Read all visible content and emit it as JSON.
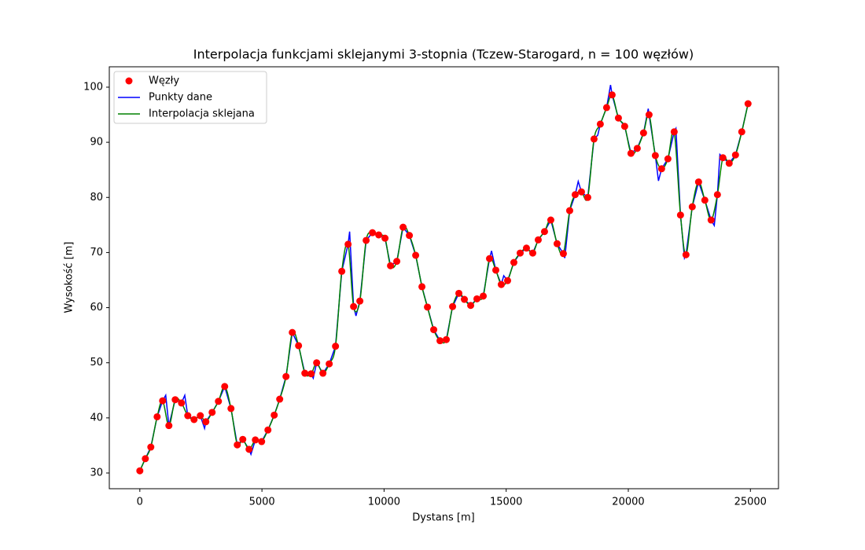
{
  "chart_data": {
    "type": "line",
    "title": "Interpolacja funkcjami sklejanymi 3-stopnia (Tczew-Starogard, n = 100 węzłów)",
    "xlabel": "Dystans [m]",
    "ylabel": "Wysokość [m]",
    "xlim": [
      -1250,
      26150
    ],
    "ylim": [
      27.15,
      103.7
    ],
    "xticks": [
      0,
      5000,
      10000,
      15000,
      20000,
      25000
    ],
    "yticks": [
      30,
      40,
      50,
      60,
      70,
      80,
      90,
      100
    ],
    "legend": "upper left",
    "series": [
      {
        "name": "Węzły",
        "type": "scatter",
        "color": "#ff0000",
        "x": [
          0,
          225,
          450,
          708,
          933,
          1190,
          1448,
          1705,
          1963,
          2220,
          2477,
          2703,
          2960,
          3218,
          3475,
          3732,
          3990,
          4215,
          4472,
          4730,
          4987,
          5245,
          5502,
          5727,
          5985,
          6242,
          6499,
          6757,
          7014,
          7240,
          7497,
          7754,
          8012,
          8269,
          8527,
          8752,
          9009,
          9266,
          9524,
          9781,
          10039,
          10264,
          10521,
          10779,
          11036,
          11294,
          11551,
          11776,
          12033,
          12291,
          12548,
          12806,
          13063,
          13288,
          13546,
          13803,
          14061,
          14318,
          14575,
          14800,
          15058,
          15315,
          15573,
          15830,
          16087,
          16313,
          16570,
          16827,
          17085,
          17342,
          17600,
          17825,
          18082,
          18340,
          18597,
          18854,
          19112,
          19337,
          19595,
          19852,
          20109,
          20367,
          20624,
          20850,
          21107,
          21364,
          21622,
          21879,
          22137,
          22362,
          22619,
          22877,
          23134,
          23391,
          23649,
          23874,
          24131,
          24389,
          24646,
          24903
        ],
        "values": [
          30.4,
          32.6,
          34.7,
          40.2,
          43.1,
          38.6,
          43.3,
          42.7,
          40.4,
          39.7,
          40.4,
          39.3,
          41.0,
          43.0,
          45.7,
          41.7,
          35.1,
          36.1,
          34.3,
          36.0,
          35.7,
          37.8,
          40.5,
          43.4,
          47.5,
          55.5,
          53.1,
          48.1,
          48.0,
          50.0,
          48.1,
          49.8,
          53.0,
          66.6,
          71.5,
          60.2,
          61.2,
          72.2,
          73.6,
          73.2,
          72.6,
          67.6,
          68.4,
          74.6,
          73.1,
          69.5,
          63.8,
          60.1,
          56.0,
          54.0,
          54.2,
          60.2,
          62.6,
          61.5,
          60.4,
          61.6,
          62.1,
          68.9,
          66.8,
          64.2,
          64.9,
          68.2,
          69.9,
          70.8,
          69.9,
          72.3,
          73.8,
          75.9,
          71.6,
          69.8,
          77.6,
          80.5,
          81.0,
          80.0,
          90.6,
          93.3,
          96.3,
          98.6,
          94.4,
          92.9,
          88.0,
          88.9,
          91.7,
          95.0,
          87.6,
          85.2,
          87.0,
          91.9,
          76.8,
          69.6,
          78.3,
          82.8,
          79.5,
          75.9,
          80.5,
          87.2,
          86.2,
          87.7,
          91.9,
          97.0
        ]
      },
      {
        "name": "Punkty dane",
        "type": "line",
        "color": "#0000ff",
        "x": [
          0,
          225,
          450,
          708,
          933,
          1060,
          1190,
          1448,
          1705,
          1840,
          1963,
          2220,
          2477,
          2650,
          2703,
          2960,
          3218,
          3475,
          3732,
          3990,
          4215,
          4472,
          4550,
          4730,
          4987,
          5245,
          5502,
          5727,
          5985,
          6242,
          6499,
          6757,
          7014,
          7100,
          7240,
          7497,
          7754,
          8012,
          8269,
          8527,
          8590,
          8752,
          8850,
          9009,
          9266,
          9524,
          9781,
          10039,
          10264,
          10521,
          10779,
          11036,
          11294,
          11551,
          11776,
          12033,
          12291,
          12548,
          12806,
          13063,
          13288,
          13546,
          13803,
          14061,
          14318,
          14400,
          14575,
          14800,
          14900,
          15058,
          15315,
          15573,
          15830,
          16087,
          16313,
          16570,
          16827,
          17085,
          17342,
          17400,
          17600,
          17825,
          17950,
          18082,
          18340,
          18597,
          18750,
          18854,
          19112,
          19273,
          19337,
          19595,
          19852,
          20109,
          20367,
          20624,
          20817,
          20850,
          21107,
          21235,
          21364,
          21622,
          21879,
          21950,
          22137,
          22300,
          22362,
          22619,
          22877,
          23134,
          23391,
          23520,
          23649,
          23750,
          23874,
          24131,
          24389,
          24646,
          24903
        ],
        "values": [
          30.4,
          32.6,
          34.7,
          40.2,
          43.1,
          44.1,
          38.6,
          43.3,
          42.7,
          44.1,
          40.4,
          39.7,
          40.4,
          38.1,
          39.3,
          41.0,
          43.0,
          45.7,
          41.7,
          35.1,
          36.1,
          34.3,
          33.4,
          36.0,
          35.7,
          37.8,
          40.5,
          43.4,
          47.5,
          55.5,
          53.1,
          48.1,
          48.0,
          47.2,
          50.0,
          48.1,
          49.8,
          53.0,
          66.6,
          71.5,
          73.8,
          60.2,
          58.5,
          61.2,
          72.2,
          73.6,
          73.2,
          72.6,
          67.6,
          68.4,
          74.6,
          73.1,
          69.5,
          63.8,
          60.1,
          56.0,
          54.0,
          54.2,
          60.2,
          62.6,
          61.5,
          60.4,
          61.6,
          62.1,
          68.9,
          70.3,
          66.8,
          64.2,
          65.8,
          64.9,
          68.2,
          69.9,
          70.8,
          69.9,
          72.3,
          73.8,
          75.9,
          71.6,
          69.8,
          69.0,
          77.6,
          80.5,
          82.9,
          81.0,
          80.0,
          90.6,
          91.3,
          93.3,
          96.3,
          100.4,
          98.6,
          94.4,
          92.9,
          88.0,
          88.9,
          91.7,
          96.1,
          95.0,
          87.6,
          83.0,
          85.2,
          87.0,
          91.9,
          92.5,
          76.8,
          69.0,
          69.6,
          78.3,
          82.8,
          79.5,
          75.9,
          74.9,
          80.5,
          87.8,
          87.2,
          86.2,
          87.7,
          91.9,
          97.0
        ]
      },
      {
        "name": "Interpolacja sklejana",
        "type": "spline",
        "color": "#008000",
        "x": [
          0,
          225,
          450,
          708,
          933,
          1190,
          1448,
          1705,
          1963,
          2220,
          2477,
          2703,
          2960,
          3218,
          3475,
          3732,
          3990,
          4215,
          4472,
          4730,
          4987,
          5245,
          5502,
          5727,
          5985,
          6242,
          6499,
          6757,
          7014,
          7240,
          7497,
          7754,
          8012,
          8269,
          8527,
          8752,
          9009,
          9266,
          9524,
          9781,
          10039,
          10264,
          10521,
          10779,
          11036,
          11294,
          11551,
          11776,
          12033,
          12291,
          12548,
          12806,
          13063,
          13288,
          13546,
          13803,
          14061,
          14318,
          14575,
          14800,
          15058,
          15315,
          15573,
          15830,
          16087,
          16313,
          16570,
          16827,
          17085,
          17342,
          17600,
          17825,
          18082,
          18340,
          18597,
          18854,
          19112,
          19337,
          19595,
          19852,
          20109,
          20367,
          20624,
          20850,
          21107,
          21364,
          21622,
          21879,
          22137,
          22362,
          22619,
          22877,
          23134,
          23391,
          23649,
          23874,
          24131,
          24389,
          24646,
          24903
        ],
        "values": [
          30.4,
          32.6,
          34.7,
          40.2,
          43.1,
          38.6,
          43.3,
          42.7,
          40.4,
          39.7,
          40.4,
          39.3,
          41.0,
          43.0,
          45.7,
          41.7,
          35.1,
          36.1,
          34.3,
          36.0,
          35.7,
          37.8,
          40.5,
          43.4,
          47.5,
          55.5,
          53.1,
          48.1,
          48.0,
          50.0,
          48.1,
          49.8,
          53.0,
          66.6,
          71.5,
          60.2,
          61.2,
          72.2,
          73.6,
          73.2,
          72.6,
          67.6,
          68.4,
          74.6,
          73.1,
          69.5,
          63.8,
          60.1,
          56.0,
          54.0,
          54.2,
          60.2,
          62.6,
          61.5,
          60.4,
          61.6,
          62.1,
          68.9,
          66.8,
          64.2,
          64.9,
          68.2,
          69.9,
          70.8,
          69.9,
          72.3,
          73.8,
          75.9,
          71.6,
          69.8,
          77.6,
          80.5,
          81.0,
          80.0,
          90.6,
          93.3,
          96.3,
          98.6,
          94.4,
          92.9,
          88.0,
          88.9,
          91.7,
          95.0,
          87.6,
          85.2,
          87.0,
          91.9,
          76.8,
          69.6,
          78.3,
          82.8,
          79.5,
          75.9,
          80.5,
          87.2,
          86.2,
          87.7,
          91.9,
          97.0
        ]
      }
    ]
  }
}
